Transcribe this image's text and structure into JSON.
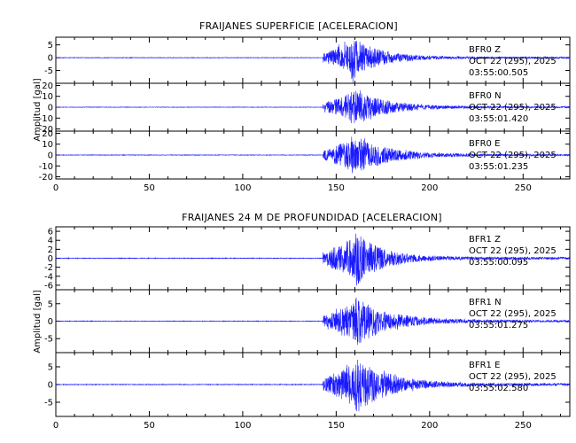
{
  "colors": {
    "trace": "#1a1aff",
    "axis": "#000000",
    "background": "#ffffff"
  },
  "chart_data": [
    {
      "type": "line",
      "title": "FRAIJANES SUPERFICIE [ACELERACION]",
      "ylabel": "Amplitud [gal]",
      "xlabel": "",
      "xlim": [
        0,
        275
      ],
      "x_ticks": [
        0,
        50,
        100,
        150,
        200,
        250
      ],
      "event_onset_s": 143,
      "peak_time_s": 158,
      "grid": false,
      "legend": "none",
      "panels": [
        {
          "name": "BFR0   Z",
          "date": "OCT 22 (295), 2025",
          "start_time": "03:55:00.505",
          "ylim": [
            -10,
            8
          ],
          "y_ticks": [
            5,
            0,
            -5
          ],
          "peak_amplitude_gal": 9
        },
        {
          "name": "BFR0   N",
          "date": "OCT 22 (295), 2025",
          "start_time": "03:55:01.420",
          "ylim": [
            -22,
            22
          ],
          "y_ticks": [
            20,
            10,
            0,
            -10,
            -20
          ],
          "peak_amplitude_gal": 18
        },
        {
          "name": "BFR0   E",
          "date": "OCT 22 (295), 2025",
          "start_time": "03:55:01.235",
          "ylim": [
            -22,
            22
          ],
          "y_ticks": [
            20,
            10,
            0,
            -10,
            -20
          ],
          "peak_amplitude_gal": 20
        }
      ]
    },
    {
      "type": "line",
      "title": "FRAIJANES 24 M DE PROFUNDIDAD [ACELERACION]",
      "ylabel": "Amplitud [gal]",
      "xlabel": "",
      "xlim": [
        0,
        275
      ],
      "x_ticks": [
        0,
        50,
        100,
        150,
        200,
        250
      ],
      "event_onset_s": 143,
      "peak_time_s": 160,
      "grid": false,
      "legend": "none",
      "panels": [
        {
          "name": "BFR1   Z",
          "date": "OCT 22 (295), 2025",
          "start_time": "03:55:00.095",
          "ylim": [
            -7,
            7
          ],
          "y_ticks": [
            6,
            4,
            2,
            0,
            -2,
            -4,
            -6
          ],
          "peak_amplitude_gal": 6.5
        },
        {
          "name": "BFR1   N",
          "date": "OCT 22 (295), 2025",
          "start_time": "03:55:01.275",
          "ylim": [
            -9,
            9
          ],
          "y_ticks": [
            5,
            0,
            -5
          ],
          "peak_amplitude_gal": 7.5
        },
        {
          "name": "BFR1   E",
          "date": "OCT 22 (295), 2025",
          "start_time": "03:55:02.580",
          "ylim": [
            -9,
            9
          ],
          "y_ticks": [
            5,
            0,
            -5
          ],
          "peak_amplitude_gal": 8.5
        }
      ]
    }
  ]
}
